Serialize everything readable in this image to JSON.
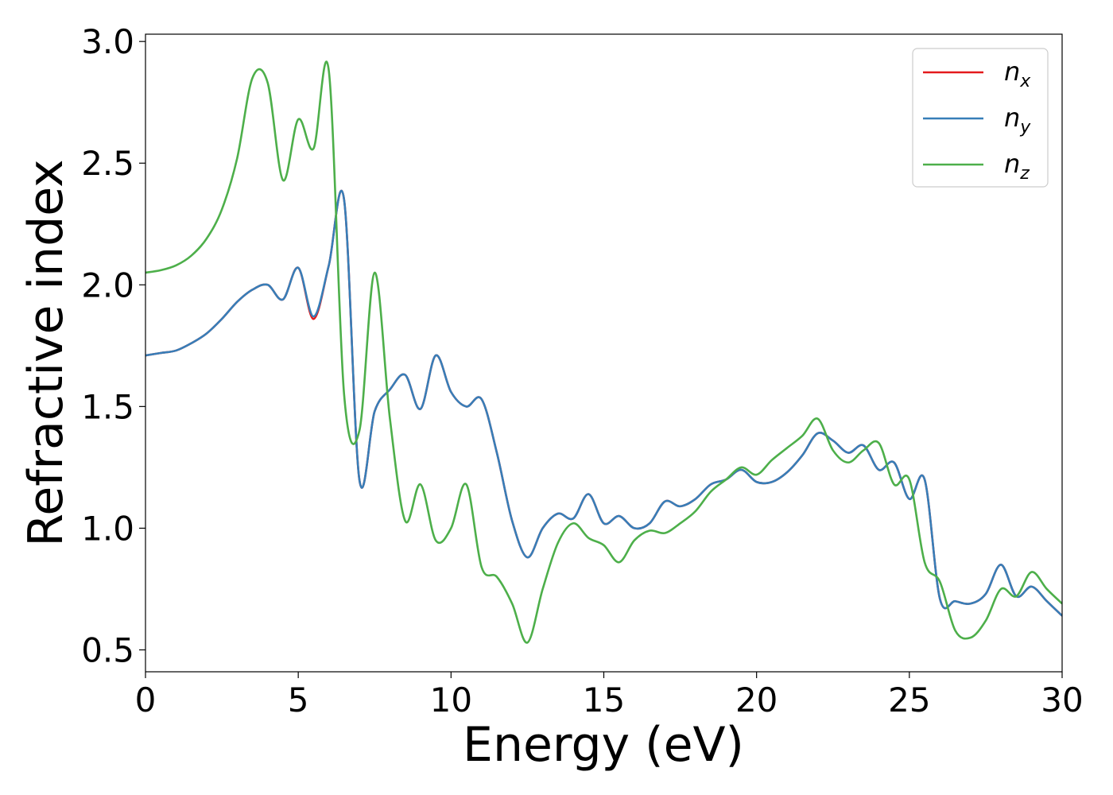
{
  "chart_data": {
    "type": "line",
    "xlabel": "Energy (eV)",
    "ylabel": "Refractive index",
    "xlim": [
      0,
      30
    ],
    "ylim": [
      0.41,
      3.03
    ],
    "xticks": [
      "0",
      "5",
      "10",
      "15",
      "20",
      "25",
      "30"
    ],
    "xtick_values": [
      0,
      5,
      10,
      15,
      20,
      25,
      30
    ],
    "yticks": [
      "0.5",
      "1.0",
      "1.5",
      "2.0",
      "2.5",
      "3.0"
    ],
    "ytick_values": [
      0.5,
      1.0,
      1.5,
      2.0,
      2.5,
      3.0
    ],
    "grid": false,
    "legend_position": "top-right",
    "x": [
      0,
      0.5,
      1,
      1.5,
      2,
      2.5,
      3,
      3.5,
      4,
      4.5,
      5,
      5.5,
      6,
      6.5,
      7,
      7.5,
      8,
      8.5,
      9,
      9.5,
      10,
      10.5,
      11,
      11.5,
      12,
      12.5,
      13,
      13.5,
      14,
      14.5,
      15,
      15.5,
      16,
      16.5,
      17,
      17.5,
      18,
      18.5,
      19,
      19.5,
      20,
      20.5,
      21,
      21.5,
      22,
      22.5,
      23,
      23.5,
      24,
      24.5,
      25,
      25.5,
      26,
      26.5,
      27,
      27.5,
      28,
      28.5,
      29,
      29.5,
      30
    ],
    "series": [
      {
        "name": "n",
        "sub": "x",
        "color": "#e41a1c",
        "values": [
          1.71,
          1.72,
          1.73,
          1.76,
          1.8,
          1.86,
          1.93,
          1.98,
          2.0,
          1.94,
          2.07,
          1.86,
          2.08,
          2.35,
          1.2,
          1.48,
          1.57,
          1.63,
          1.49,
          1.71,
          1.56,
          1.5,
          1.53,
          1.31,
          1.03,
          0.88,
          1.0,
          1.06,
          1.04,
          1.14,
          1.02,
          1.05,
          1.0,
          1.02,
          1.11,
          1.09,
          1.12,
          1.18,
          1.2,
          1.24,
          1.19,
          1.19,
          1.23,
          1.3,
          1.39,
          1.36,
          1.31,
          1.34,
          1.24,
          1.27,
          1.12,
          1.2,
          0.71,
          0.7,
          0.69,
          0.73,
          0.85,
          0.72,
          0.76,
          0.7,
          0.64
        ]
      },
      {
        "name": "n",
        "sub": "y",
        "color": "#377eb8",
        "values": [
          1.71,
          1.72,
          1.73,
          1.76,
          1.8,
          1.86,
          1.93,
          1.98,
          2.0,
          1.94,
          2.07,
          1.87,
          2.08,
          2.35,
          1.2,
          1.48,
          1.57,
          1.63,
          1.49,
          1.71,
          1.56,
          1.5,
          1.53,
          1.31,
          1.03,
          0.88,
          1.0,
          1.06,
          1.04,
          1.14,
          1.02,
          1.05,
          1.0,
          1.02,
          1.11,
          1.09,
          1.12,
          1.18,
          1.2,
          1.24,
          1.19,
          1.19,
          1.23,
          1.3,
          1.39,
          1.36,
          1.31,
          1.34,
          1.24,
          1.27,
          1.12,
          1.2,
          0.71,
          0.7,
          0.69,
          0.73,
          0.85,
          0.72,
          0.76,
          0.7,
          0.64
        ]
      },
      {
        "name": "n",
        "sub": "z",
        "color": "#4daf4a",
        "values": [
          2.05,
          2.06,
          2.08,
          2.12,
          2.19,
          2.31,
          2.52,
          2.85,
          2.83,
          2.43,
          2.68,
          2.56,
          2.88,
          1.55,
          1.4,
          2.05,
          1.45,
          1.03,
          1.18,
          0.95,
          1.0,
          1.18,
          0.84,
          0.8,
          0.69,
          0.53,
          0.75,
          0.94,
          1.02,
          0.96,
          0.93,
          0.86,
          0.95,
          0.99,
          0.98,
          1.02,
          1.07,
          1.15,
          1.2,
          1.25,
          1.22,
          1.28,
          1.33,
          1.38,
          1.45,
          1.32,
          1.27,
          1.32,
          1.35,
          1.18,
          1.2,
          0.86,
          0.78,
          0.58,
          0.55,
          0.62,
          0.75,
          0.72,
          0.82,
          0.75,
          0.69
        ]
      }
    ]
  }
}
